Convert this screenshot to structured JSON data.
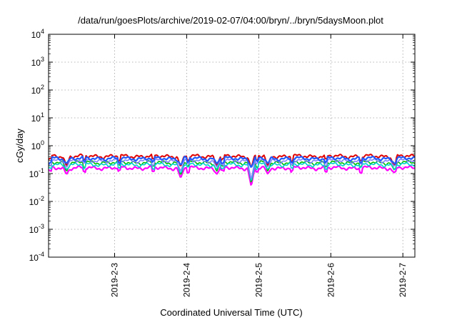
{
  "chart_data": {
    "type": "line",
    "title": "/data/run/goesPlots/archive/2019-02-07/04:00/bryn/../bryn/5daysMoon.plot",
    "xlabel": "Coordinated Universal Time (UTC)",
    "ylabel": "cGy/day",
    "yscale": "log",
    "ylim": [
      0.0001,
      10000
    ],
    "xlim": [
      "2019-02-02 02:00",
      "2019-02-07 04:00"
    ],
    "y_ticks": [
      {
        "value": 0.0001,
        "base": "10",
        "exp": "-4"
      },
      {
        "value": 0.001,
        "base": "10",
        "exp": "-3"
      },
      {
        "value": 0.01,
        "base": "10",
        "exp": "-2"
      },
      {
        "value": 0.1,
        "base": "10",
        "exp": "-1"
      },
      {
        "value": 1,
        "base": "10",
        "exp": "0"
      },
      {
        "value": 10,
        "base": "10",
        "exp": "1"
      },
      {
        "value": 100,
        "base": "10",
        "exp": "2"
      },
      {
        "value": 1000,
        "base": "10",
        "exp": "3"
      },
      {
        "value": 10000,
        "base": "10",
        "exp": "4"
      }
    ],
    "x_ticks": [
      {
        "label": "2019-2-3",
        "value": "2019-02-03"
      },
      {
        "label": "2019-2-4",
        "value": "2019-02-04"
      },
      {
        "label": "2019-2-5",
        "value": "2019-02-05"
      },
      {
        "label": "2019-2-6",
        "value": "2019-02-06"
      },
      {
        "label": "2019-2-7",
        "value": "2019-02-07"
      }
    ],
    "grid": true,
    "legend": "none",
    "series": [
      {
        "color": "#e00000",
        "level": 0.42,
        "width": 2.0
      },
      {
        "color": "#ff00ff",
        "level": 0.16,
        "width": 2.2
      },
      {
        "color": "#00c000",
        "level": 0.25,
        "width": 1.6
      },
      {
        "color": "#00d0d0",
        "level": 0.21,
        "width": 1.6
      },
      {
        "color": "#8080ff",
        "level": 0.29,
        "width": 1.6
      },
      {
        "color": "#1e5aff",
        "level": 0.35,
        "width": 2.2
      }
    ],
    "dips": [
      {
        "x": "2019-02-02 08:00",
        "min": 0.07
      },
      {
        "x": "2019-02-03 22:00",
        "min": 0.05
      },
      {
        "x": "2019-02-04 10:00",
        "min": 0.07
      },
      {
        "x": "2019-02-04 21:30",
        "min": 0.025
      },
      {
        "x": "2019-02-05 03:00",
        "min": 0.07
      },
      {
        "x": "2019-02-06 21:00",
        "min": 0.08
      }
    ]
  }
}
